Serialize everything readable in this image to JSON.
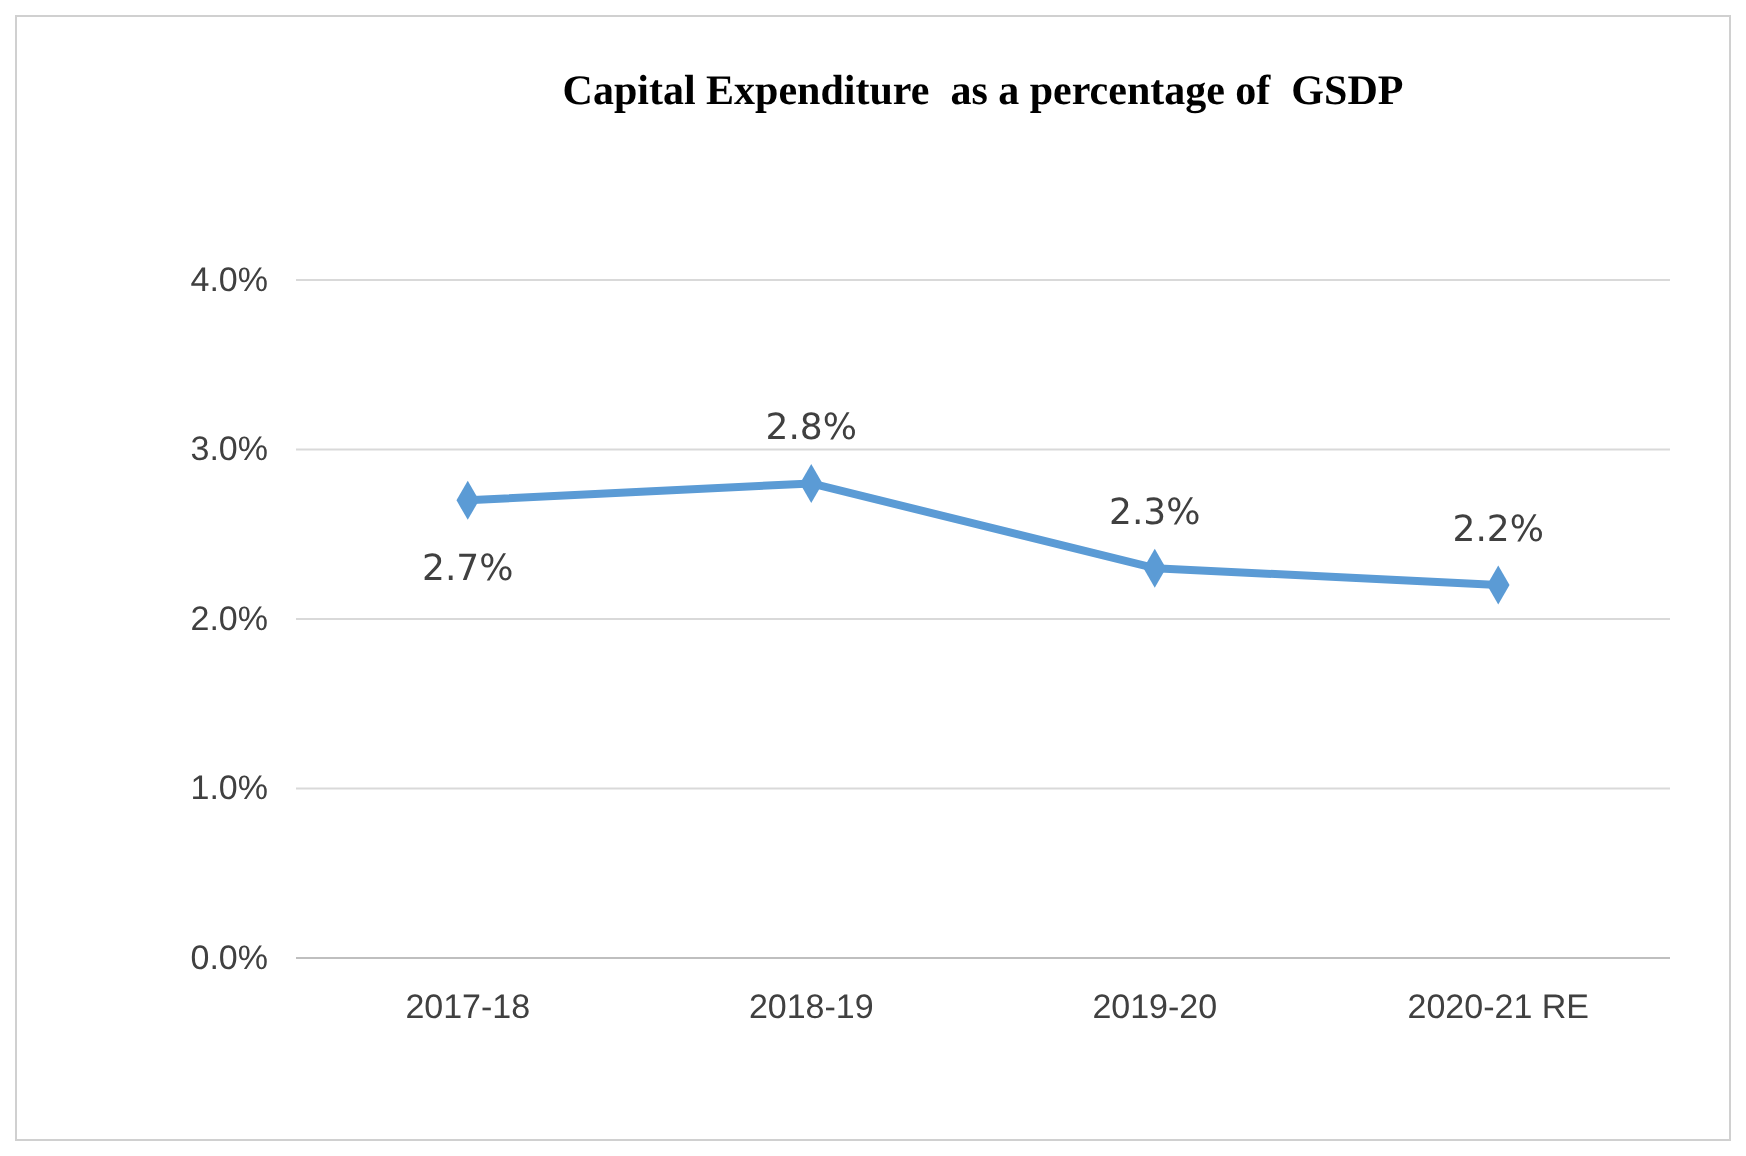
{
  "chart_data": {
    "type": "line",
    "title": "Capital Expenditure  as a percentage of  GSDP",
    "categories": [
      "2017-18",
      "2018-19",
      "2019-20",
      "2020-21 RE"
    ],
    "series": [
      {
        "color": "#5b9bd5",
        "values": [
          2.7,
          2.8,
          2.3,
          2.2
        ],
        "value_labels": [
          "2.7%",
          "2.8%",
          "2.3%",
          "2.2%"
        ]
      }
    ],
    "ylim": [
      0,
      4
    ],
    "yticks": [
      {
        "value": 0,
        "label": "0.0%"
      },
      {
        "value": 1,
        "label": "1.0%"
      },
      {
        "value": 2,
        "label": "2.0%"
      },
      {
        "value": 3,
        "label": "3.0%"
      },
      {
        "value": 4,
        "label": "4.0%"
      }
    ],
    "grid": "y",
    "marker": "diamond",
    "line_style": "solid"
  }
}
